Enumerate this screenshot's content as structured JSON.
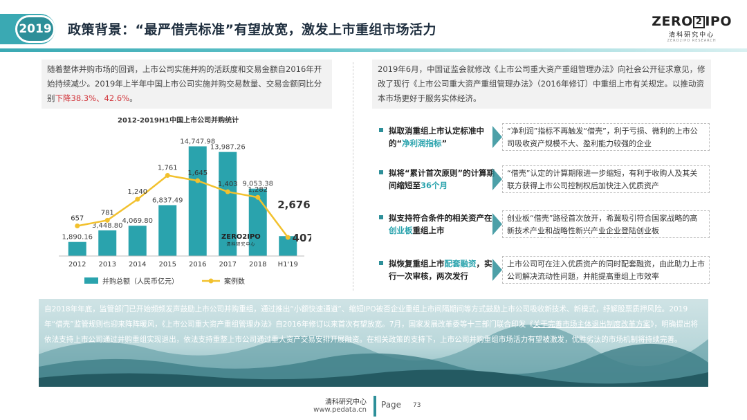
{
  "header": {
    "year": "2019",
    "title": "政策背景：“最严借壳标准”有望放宽，激发上市重组市场活力",
    "logo_main_left": "ZERO",
    "logo_main_box": "2",
    "logo_main_right": "IPO",
    "logo_sub": "清科研究中心",
    "logo_tiny": "ZERO2IPO RESEARCH"
  },
  "left_text": {
    "part1": "随着整体并购市场的回调，上市公司实施并购的活跃度和交易金额自2016年开始持续减少。2019年上半年中国上市公司实施并购交易数量、交易金额同比分别",
    "highlight": "下降38.3%、42.6%",
    "part2": "。"
  },
  "chart_data": {
    "type": "bar",
    "title": "2012-2019H1中国上市公司并购统计",
    "categories": [
      "2012",
      "2013",
      "2014",
      "2015",
      "2016",
      "2017",
      "2018",
      "H1'19"
    ],
    "series": [
      {
        "name": "并购总额（人民币亿元）",
        "type": "bar",
        "values": [
          1890.16,
          3448.8,
          4069.8,
          6837.49,
          14747.98,
          13987.26,
          9053.38,
          2676.25
        ],
        "labels": [
          "1,890.16",
          "3,448.80",
          "4,069.80",
          "6,837.49",
          "14,747.98",
          "13,987.26",
          "9,053.38",
          "2,676.25"
        ]
      },
      {
        "name": "案例数",
        "type": "line",
        "values": [
          657,
          781,
          1240,
          1761,
          1645,
          1403,
          1282,
          407
        ],
        "labels": [
          "657",
          "781",
          "1,240",
          "1,761",
          "1,645",
          "1,403",
          "1,282",
          "407"
        ]
      }
    ],
    "ylim_bar": [
      0,
      16000
    ],
    "ylim_line": [
      0,
      2600
    ],
    "legend_position": "bottom",
    "grid": false,
    "colors": {
      "bar": "#2aa3ad",
      "line": "#f2c12e"
    },
    "watermark_main": "ZERO2IPO",
    "watermark_sub": "清科研究中心"
  },
  "right_intro": "2019年6月，中国证监会就修改《上市公司重大资产重组管理办法》向社会公开征求意见，修改了现行《上市公司重大资产重组管理办法》（2016年修订）中重组上市有关规定。以推动资本市场更好于服务实体经济。",
  "policies": [
    {
      "label_pre": "拟取消重组上市认定标准中的“",
      "label_hl": "净利润指标",
      "label_post": "”",
      "desc": "“净利润”指标不再触发“借壳”，利于亏损、微利的上市公司吸收资产规模不大、盈利能力较强的企业"
    },
    {
      "label_pre": "拟将“累计首次原则”的计算期间缩短至",
      "label_hl": "36个月",
      "label_post": "",
      "desc": "“借壳”认定的计算期限进一步缩短，有利于收购人及其关联方获得上市公司控制权后加快注入优质资产"
    },
    {
      "label_pre": "拟支持符合条件的相关资产在",
      "label_hl": "创业板",
      "label_post": "重组上市",
      "desc": "创业板“借壳”路径首次放开，希冀吸引符合国家战略的高新技术产业和战略性新兴产业企业登陆创业板"
    },
    {
      "label_pre": "拟恢复重组上市",
      "label_hl": "配套融资",
      "label_post": "，实行一次审核，两次发行",
      "desc": "上市公司可在注入优质资产的同时配套融资，由此助力上市公司解决流动性问题，并能提高重组上市效率"
    }
  ],
  "banner": {
    "text1": "自2018年年底，监管部门已开始频频发声鼓励上市公司并购重组，通过推出“小额快速通道”、缩短IPO被否企业重组上市间隔期间等方式鼓励上市公司吸收新技术、新模式，纾解股票质押风险。2019年“借壳”监管规则也迎来阵阵暖风，《上市公司重大资产重组管理办法》自2016年修订以来首次有望放宽。7月，国家发展改革委等十三部门联合印发《",
    "text_ul": "关于完善市场主体退出制度改革方案",
    "text2": "》，明确提出将依法支持上市公司通过并购重组实现退出，依法支持重整上市公司通过重大资产交易安排开展融资。在相关政策的支持下，上市公司并购重组市场活力有望被激发，优胜劣汰的市场机制将持续完善。"
  },
  "footer": {
    "org": "清科研究中心",
    "url": "www.pedata.cn",
    "page_label": "Page",
    "page_number": "73"
  }
}
